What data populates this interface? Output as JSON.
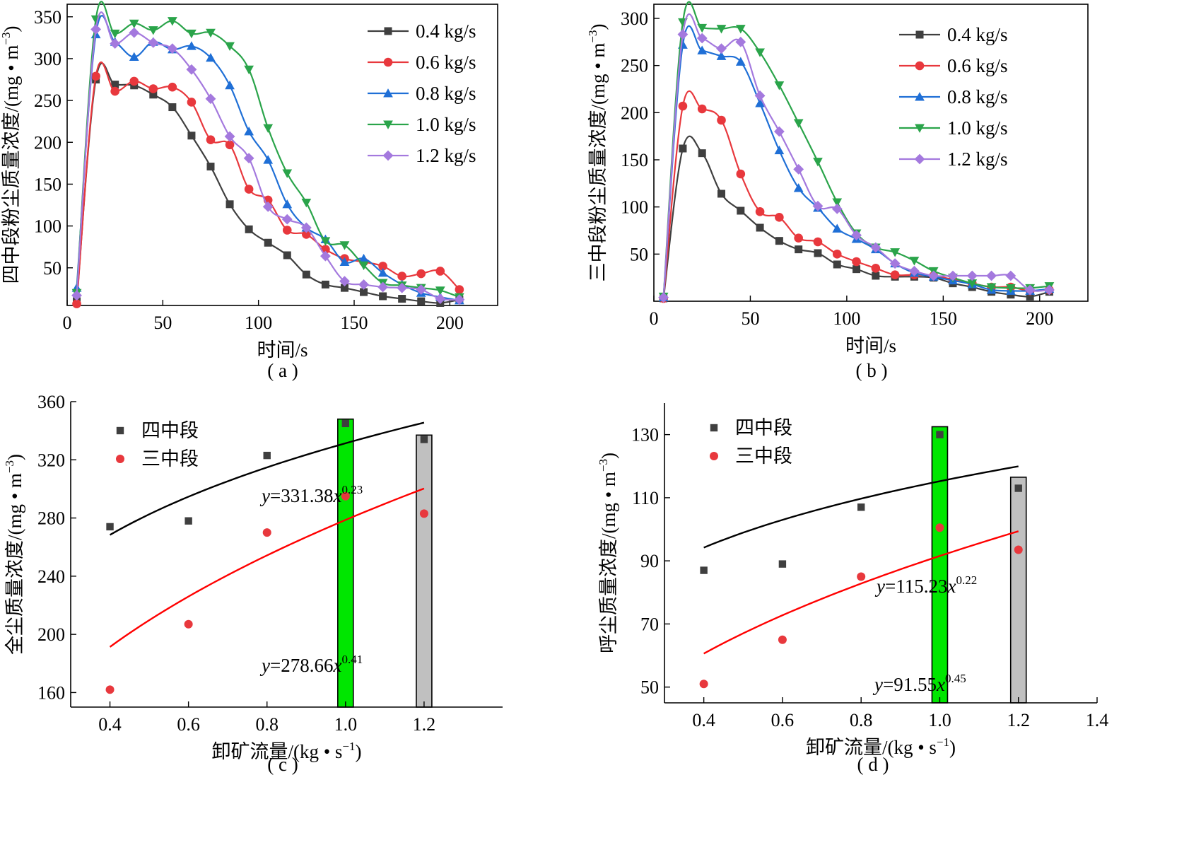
{
  "chart_data": [
    {
      "type": "line",
      "caption": "( a )",
      "xlabel": "时间/s",
      "ylabel": "四中段粉尘质量浓度/(mg • m",
      "ylabel_sup": "−3",
      "ylabel_close": ")",
      "xlim": [
        0,
        225
      ],
      "ylim": [
        5,
        365
      ],
      "xticks": [
        0,
        50,
        100,
        150,
        200
      ],
      "yticks": [
        50,
        100,
        150,
        200,
        250,
        300,
        350
      ],
      "legend_position": "top-right",
      "x": [
        5,
        15,
        25,
        35,
        45,
        55,
        65,
        75,
        85,
        95,
        105,
        115,
        125,
        135,
        145,
        155,
        165,
        175,
        185,
        195,
        205
      ],
      "series": [
        {
          "name": "0.4 kg/s",
          "color": "#3f3f3f",
          "marker": "square",
          "values": [
            10,
            275,
            269,
            268,
            257,
            242,
            208,
            171,
            126,
            96,
            80,
            65,
            42,
            30,
            26,
            21,
            16,
            13,
            10,
            8,
            12
          ]
        },
        {
          "name": "0.6 kg/s",
          "color": "#e8383d",
          "marker": "circle",
          "values": [
            7,
            279,
            261,
            273,
            264,
            266,
            248,
            203,
            197,
            144,
            131,
            95,
            90,
            72,
            61,
            57,
            52,
            40,
            43,
            46,
            24
          ]
        },
        {
          "name": "0.8 kg/s",
          "color": "#1f6fd6",
          "marker": "triangle-up",
          "values": [
            26,
            329,
            320,
            302,
            320,
            311,
            315,
            301,
            268,
            213,
            179,
            126,
            98,
            84,
            57,
            61,
            44,
            30,
            20,
            15,
            11
          ]
        },
        {
          "name": "1.0 kg/s",
          "color": "#2aa44a",
          "marker": "triangle-down",
          "values": [
            20,
            347,
            330,
            342,
            334,
            345,
            330,
            331,
            315,
            287,
            217,
            163,
            128,
            82,
            77,
            53,
            32,
            29,
            26,
            23,
            15
          ]
        },
        {
          "name": "1.2 kg/s",
          "color": "#a479de",
          "marker": "diamond",
          "values": [
            17,
            335,
            318,
            331,
            319,
            312,
            287,
            252,
            207,
            181,
            123,
            108,
            98,
            64,
            34,
            30,
            27,
            26,
            24,
            13,
            12
          ]
        }
      ]
    },
    {
      "type": "line",
      "caption": "( b )",
      "xlabel": "时间/s",
      "ylabel": "三中段粉尘质量浓度/(mg • m",
      "ylabel_sup": "−3",
      "ylabel_close": ")",
      "xlim": [
        0,
        225
      ],
      "ylim": [
        0,
        315
      ],
      "xticks": [
        0,
        50,
        100,
        150,
        200
      ],
      "yticks": [
        50,
        100,
        150,
        200,
        250,
        300
      ],
      "legend_position": "top-right",
      "x": [
        5,
        15,
        25,
        35,
        45,
        55,
        65,
        75,
        85,
        95,
        105,
        115,
        125,
        135,
        145,
        155,
        165,
        175,
        185,
        195,
        205
      ],
      "series": [
        {
          "name": "0.4 kg/s",
          "color": "#3f3f3f",
          "marker": "square",
          "values": [
            3,
            162,
            157,
            114,
            96,
            78,
            64,
            55,
            51,
            39,
            34,
            27,
            26,
            26,
            25,
            19,
            15,
            10,
            7,
            5,
            10
          ]
        },
        {
          "name": "0.6 kg/s",
          "color": "#e8383d",
          "marker": "circle",
          "values": [
            3,
            207,
            204,
            192,
            135,
            95,
            89,
            67,
            63,
            50,
            42,
            35,
            28,
            28,
            27,
            23,
            19,
            15,
            15,
            11,
            12
          ]
        },
        {
          "name": "0.8 kg/s",
          "color": "#1f6fd6",
          "marker": "triangle-up",
          "values": [
            4,
            272,
            266,
            260,
            254,
            210,
            160,
            120,
            99,
            77,
            66,
            55,
            40,
            30,
            26,
            22,
            18,
            12,
            11,
            11,
            13
          ]
        },
        {
          "name": "1.0 kg/s",
          "color": "#2aa44a",
          "marker": "triangle-down",
          "values": [
            5,
            296,
            290,
            289,
            289,
            264,
            229,
            189,
            148,
            105,
            72,
            57,
            52,
            43,
            32,
            25,
            19,
            15,
            14,
            14,
            16
          ]
        },
        {
          "name": "1.2 kg/s",
          "color": "#a479de",
          "marker": "diamond",
          "values": [
            4,
            283,
            279,
            268,
            275,
            218,
            180,
            140,
            101,
            98,
            70,
            57,
            40,
            32,
            27,
            27,
            27,
            27,
            27,
            12,
            12
          ]
        }
      ]
    },
    {
      "type": "scatter",
      "caption": "( c )",
      "xlabel": "卸矿流量/(kg • s",
      "xlabel_sup": "−1",
      "xlabel_close": ")",
      "ylabel": "全尘质量浓度/(mg • m",
      "ylabel_sup": "−3",
      "ylabel_close": ")",
      "xlim": [
        0.3,
        1.4
      ],
      "ylim": [
        150,
        360
      ],
      "xticks": [
        0.4,
        0.6,
        0.8,
        1.0,
        1.2
      ],
      "yticks": [
        160,
        200,
        240,
        280,
        320,
        360
      ],
      "legend_position": "top-left",
      "series": [
        {
          "name": "四中段",
          "color": "#3f3f3f",
          "marker": "square",
          "x": [
            0.4,
            0.6,
            0.8,
            1.0,
            1.2
          ],
          "values": [
            274,
            278,
            323,
            345,
            334
          ]
        },
        {
          "name": "三中段",
          "color": "#e8383d",
          "marker": "circle",
          "x": [
            0.4,
            0.6,
            0.8,
            1.0,
            1.2
          ],
          "values": [
            162,
            207,
            270,
            295,
            283
          ]
        }
      ],
      "fits": [
        {
          "color": "#000000",
          "a": 331.38,
          "b": 0.23,
          "x_range": [
            0.4,
            1.2
          ],
          "label_main": "=331.38",
          "label_exp": "0.23"
        },
        {
          "color": "#ff0000",
          "a": 278.66,
          "b": 0.41,
          "x_range": [
            0.4,
            1.2
          ],
          "label_main": "=278.66",
          "label_exp": "0.41"
        }
      ],
      "highlights": [
        {
          "x": 1.0,
          "color": "#00e600",
          "top": 348
        },
        {
          "x": 1.2,
          "color": "#c0c0c0",
          "top": 337
        }
      ]
    },
    {
      "type": "scatter",
      "caption": "( d )",
      "xlabel": "卸矿流量/(kg • s",
      "xlabel_sup": "−1",
      "xlabel_close": ")",
      "ylabel": "呼尘质量浓度/(mg • m",
      "ylabel_sup": "−3",
      "ylabel_close": ")",
      "xlim": [
        0.3,
        1.4
      ],
      "ylim": [
        45,
        140
      ],
      "xticks": [
        0.4,
        0.6,
        0.8,
        1.0,
        1.2,
        1.4
      ],
      "yticks": [
        50,
        70,
        90,
        110,
        130
      ],
      "legend_position": "top-left",
      "series": [
        {
          "name": "四中段",
          "color": "#3f3f3f",
          "marker": "square",
          "x": [
            0.4,
            0.6,
            0.8,
            1.0,
            1.2
          ],
          "values": [
            87,
            89,
            107,
            130,
            113
          ]
        },
        {
          "name": "三中段",
          "color": "#e8383d",
          "marker": "circle",
          "x": [
            0.4,
            0.6,
            0.8,
            1.0,
            1.2
          ],
          "values": [
            51,
            65,
            85,
            100.5,
            93.5
          ]
        }
      ],
      "fits": [
        {
          "color": "#000000",
          "a": 115.23,
          "b": 0.22,
          "x_range": [
            0.4,
            1.2
          ],
          "label_main": "=115.23",
          "label_exp": "0.22"
        },
        {
          "color": "#ff0000",
          "a": 91.55,
          "b": 0.45,
          "x_range": [
            0.4,
            1.2
          ],
          "label_main": "=91.55",
          "label_exp": "0.45"
        }
      ],
      "highlights": [
        {
          "x": 1.0,
          "color": "#00e600",
          "top": 132.5
        },
        {
          "x": 1.2,
          "color": "#c0c0c0",
          "top": 116.5
        }
      ]
    }
  ]
}
